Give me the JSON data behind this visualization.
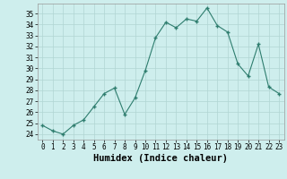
{
  "x": [
    0,
    1,
    2,
    3,
    4,
    5,
    6,
    7,
    8,
    9,
    10,
    11,
    12,
    13,
    14,
    15,
    16,
    17,
    18,
    19,
    20,
    21,
    22,
    23
  ],
  "y": [
    24.8,
    24.3,
    24.0,
    24.8,
    25.3,
    26.5,
    27.7,
    28.2,
    25.8,
    27.3,
    29.8,
    32.8,
    34.2,
    33.7,
    34.5,
    34.3,
    35.5,
    33.9,
    33.3,
    30.4,
    29.3,
    32.2,
    28.3,
    27.7
  ],
  "line_color": "#2e7d6e",
  "marker_color": "#2e7d6e",
  "bg_color": "#ceeeed",
  "grid_color": "#b0d5d3",
  "xlabel": "Humidex (Indice chaleur)",
  "ylim": [
    23.5,
    35.9
  ],
  "xlim": [
    -0.5,
    23.5
  ],
  "yticks": [
    24,
    25,
    26,
    27,
    28,
    29,
    30,
    31,
    32,
    33,
    34,
    35
  ],
  "xticks": [
    0,
    1,
    2,
    3,
    4,
    5,
    6,
    7,
    8,
    9,
    10,
    11,
    12,
    13,
    14,
    15,
    16,
    17,
    18,
    19,
    20,
    21,
    22,
    23
  ],
  "tick_fontsize": 5.5,
  "label_fontsize": 7.5
}
